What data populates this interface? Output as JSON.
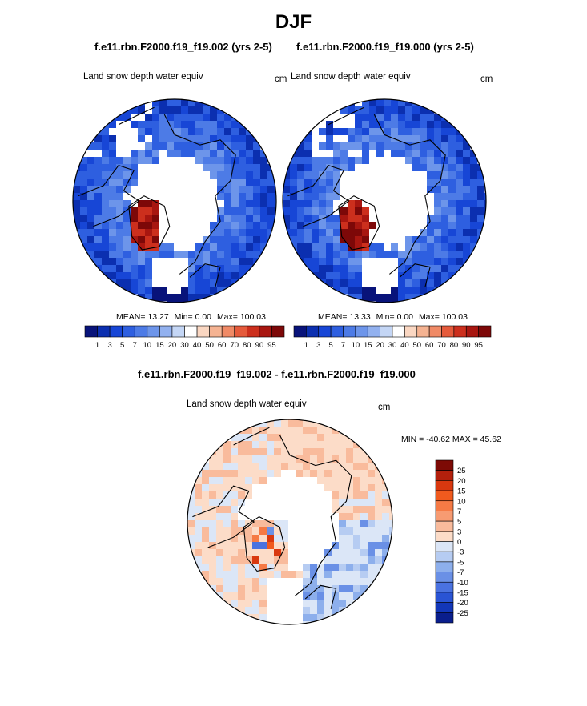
{
  "page": {
    "title": "DJF"
  },
  "panels": [
    {
      "title": "f.e11.rbn.F2000.f19_f19.002 (yrs 2-5)",
      "variable_label": "Land snow depth water equiv",
      "units": "cm",
      "stats": {
        "mean_label": "MEAN=",
        "mean": "13.27",
        "min_label": "Min=",
        "min": "0.00",
        "max_label": "Max=",
        "max": "100.03"
      }
    },
    {
      "title": "f.e11.rbn.F2000.f19_f19.000 (yrs 2-5)",
      "variable_label": "Land snow depth water equiv",
      "units": "cm",
      "stats": {
        "mean_label": "MEAN=",
        "mean": "13.33",
        "min_label": "Min=",
        "min": "0.00",
        "max_label": "Max=",
        "max": "100.03"
      }
    },
    {
      "title": "f.e11.rbn.F2000.f19_f19.002 - f.e11.rbn.F2000.f19_f19.000",
      "variable_label": "Land snow depth water equiv",
      "units": "cm",
      "stats_text": "MIN = -40.62 MAX =  45.62"
    }
  ],
  "chart_data": [
    {
      "type": "heatmap",
      "projection": "north polar stereographic",
      "title": "f.e11.rbn.F2000.f19_f19.002 (yrs 2-5)",
      "variable": "Land snow depth water equiv",
      "units": "cm",
      "mean": 13.27,
      "min": 0.0,
      "max": 100.03,
      "colorbar_levels": [
        1,
        3,
        5,
        7,
        10,
        15,
        20,
        30,
        40,
        50,
        60,
        70,
        80,
        90,
        95
      ],
      "colorbar_colors": [
        "#08137a",
        "#0b2fb0",
        "#1746d6",
        "#2e5fe0",
        "#4d7be6",
        "#6d95ea",
        "#92b1ef",
        "#c4d6f5",
        "#ffffff",
        "#fad7c2",
        "#f5b392",
        "#f08a66",
        "#e55a3b",
        "#cc2f1d",
        "#a81610",
        "#7d0808"
      ]
    },
    {
      "type": "heatmap",
      "projection": "north polar stereographic",
      "title": "f.e11.rbn.F2000.f19_f19.000 (yrs 2-5)",
      "variable": "Land snow depth water equiv",
      "units": "cm",
      "mean": 13.33,
      "min": 0.0,
      "max": 100.03,
      "colorbar_levels": [
        1,
        3,
        5,
        7,
        10,
        15,
        20,
        30,
        40,
        50,
        60,
        70,
        80,
        90,
        95
      ],
      "colorbar_colors": [
        "#08137a",
        "#0b2fb0",
        "#1746d6",
        "#2e5fe0",
        "#4d7be6",
        "#6d95ea",
        "#92b1ef",
        "#c4d6f5",
        "#ffffff",
        "#fad7c2",
        "#f5b392",
        "#f08a66",
        "#e55a3b",
        "#cc2f1d",
        "#a81610",
        "#7d0808"
      ]
    },
    {
      "type": "heatmap",
      "projection": "north polar stereographic",
      "title": "f.e11.rbn.F2000.f19_f19.002 - f.e11.rbn.F2000.f19_f19.000",
      "variable": "Land snow depth water equiv",
      "units": "cm",
      "min": -40.62,
      "max": 45.62,
      "colorbar_levels": [
        25,
        20,
        15,
        10,
        7,
        5,
        3,
        0,
        -3,
        -5,
        -7,
        -10,
        -15,
        -20,
        -25
      ],
      "colorbar_colors": [
        "#7d0a05",
        "#b3200c",
        "#d9380f",
        "#f05a1e",
        "#f57a45",
        "#f79b72",
        "#f9bb9c",
        "#fcdcc8",
        "#dbe6f7",
        "#b6ccf2",
        "#8dafec",
        "#6a90e6",
        "#4a72e0",
        "#2a54d4",
        "#1337b8",
        "#0a1e8c"
      ]
    }
  ]
}
